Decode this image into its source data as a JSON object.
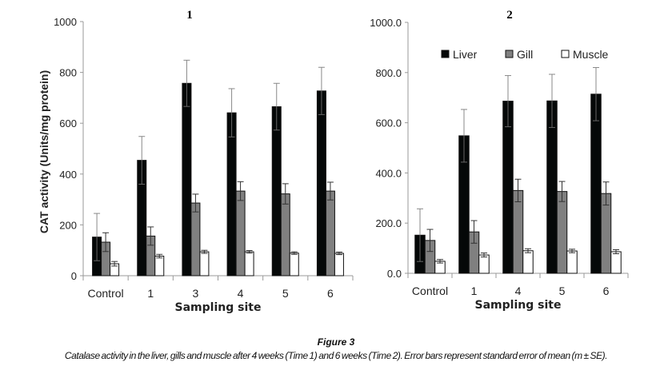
{
  "chart_data": [
    {
      "type": "bar",
      "title": "1",
      "xlabel": "Sampling site",
      "ylabel": "CAT activity (Units/mg protein)",
      "ylim": [
        0,
        1000
      ],
      "yticks": [
        "0",
        "200",
        "400",
        "600",
        "800",
        "1000"
      ],
      "categories": [
        "Control",
        "1",
        "3",
        "4",
        "5",
        "6"
      ],
      "series": [
        {
          "name": "Liver",
          "color": "#050808",
          "values": [
            152,
            454,
            757,
            641,
            665,
            727
          ],
          "errors": [
            93,
            94,
            91,
            95,
            92,
            93
          ]
        },
        {
          "name": "Gill",
          "color": "#808080",
          "values": [
            132,
            156,
            286,
            333,
            322,
            333
          ],
          "errors": [
            37,
            36,
            35,
            37,
            40,
            35
          ]
        },
        {
          "name": "Muscle",
          "color": "#ffffff",
          "values": [
            47,
            77,
            94,
            94,
            89,
            88
          ],
          "errors": [
            9,
            7,
            6,
            5,
            5,
            5
          ]
        }
      ],
      "legend": false
    },
    {
      "type": "bar",
      "title": "2",
      "xlabel": "Sampling site",
      "ylabel": "",
      "ylim": [
        0,
        1000
      ],
      "yticks": [
        "0.0",
        "200.0",
        "400.0",
        "600.0",
        "800.0",
        "1000.0"
      ],
      "categories": [
        "Control",
        "1",
        "4",
        "5",
        "6"
      ],
      "series": [
        {
          "name": "Liver",
          "color": "#050808",
          "values": [
            152,
            548,
            686,
            687,
            714
          ],
          "errors": [
            105,
            105,
            102,
            106,
            106
          ]
        },
        {
          "name": "Gill",
          "color": "#808080",
          "values": [
            131,
            165,
            330,
            326,
            318
          ],
          "errors": [
            44,
            45,
            45,
            40,
            46
          ]
        },
        {
          "name": "Muscle",
          "color": "#ffffff",
          "values": [
            48,
            73,
            90,
            89,
            86
          ],
          "errors": [
            7,
            8,
            8,
            7,
            8
          ]
        }
      ],
      "legend": "top"
    }
  ],
  "caption": {
    "figure": "Figure 3",
    "text": "Catalase activity in the liver, gills and muscle after 4 weeks (Time 1) and 6 weeks (Time 2). Error bars represent standard error of mean (m ± SE)."
  }
}
